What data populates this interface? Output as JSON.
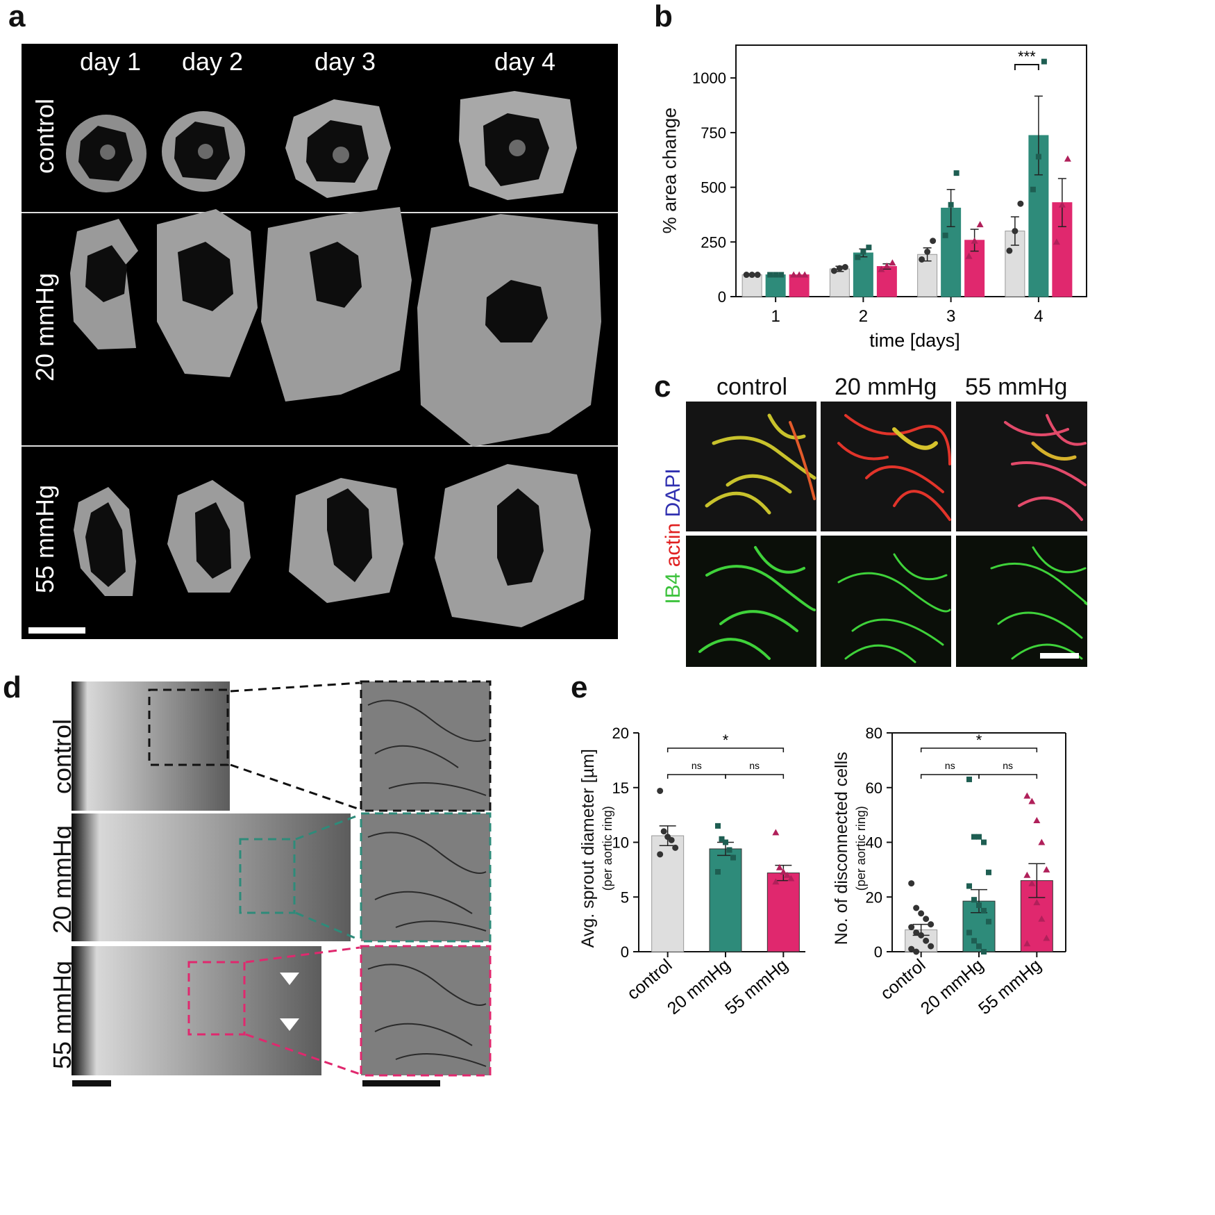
{
  "panels": {
    "a": {
      "letter": "a",
      "columns": [
        "day 1",
        "day 2",
        "day 3",
        "day 4"
      ],
      "rows": [
        "control",
        "20 mmHg",
        "55 mmHg"
      ]
    },
    "b": {
      "letter": "b"
    },
    "c": {
      "letter": "c",
      "columns": [
        "control",
        "20 mmHg",
        "55 mmHg"
      ],
      "stain": {
        "IB4": "IB4",
        "actin": "actin",
        "DAPI": "DAPI"
      }
    },
    "d": {
      "letter": "d",
      "rows": [
        "control",
        "20 mmHg",
        "55 mmHg"
      ]
    },
    "e": {
      "letter": "e"
    }
  },
  "colors": {
    "control": "#dedede",
    "p20": "#2e8b7a",
    "p55": "#e0286e",
    "mark_p55": "#b0205a"
  },
  "chart_data": [
    {
      "id": "b",
      "type": "bar",
      "categories": [
        "1",
        "2",
        "3",
        "4"
      ],
      "xlabel": "time [days]",
      "ylabel": "% area change",
      "ylim": [
        0,
        1150
      ],
      "yticks": [
        "0",
        "250",
        "500",
        "750",
        "1000"
      ],
      "series": [
        {
          "key": "control",
          "values": [
            100,
            127,
            193,
            300
          ],
          "errors": [
            0,
            12,
            30,
            65
          ],
          "points": [
            [
              100,
              100,
              100
            ],
            [
              118,
              130,
              135
            ],
            [
              170,
              205,
              255
            ],
            [
              210,
              300,
              425
            ]
          ]
        },
        {
          "key": "p20",
          "values": [
            100,
            200,
            405,
            737
          ],
          "errors": [
            0,
            18,
            85,
            180
          ],
          "points": [
            [
              100,
              100,
              100
            ],
            [
              180,
              205,
              225
            ],
            [
              280,
              420,
              565
            ],
            [
              490,
              640,
              1075
            ]
          ]
        },
        {
          "key": "p55",
          "values": [
            100,
            138,
            258,
            430
          ],
          "errors": [
            0,
            12,
            50,
            110
          ],
          "points": [
            [
              100,
              100,
              100
            ],
            [
              125,
              140,
              155
            ],
            [
              185,
              255,
              330
            ],
            [
              250,
              420,
              630
            ]
          ]
        }
      ],
      "annotations": [
        {
          "text": "***",
          "category": "4"
        }
      ]
    },
    {
      "id": "e1",
      "type": "bar",
      "categories": [
        "control",
        "20 mmHg",
        "55 mmHg"
      ],
      "ylabel": "Avg. sprout diameter [µm]",
      "ylabel_sub": "(per aortic ring)",
      "ylim": [
        0,
        20
      ],
      "yticks": [
        "0",
        "5",
        "10",
        "15",
        "20"
      ],
      "values": [
        10.6,
        9.4,
        7.2
      ],
      "errors": [
        0.9,
        0.6,
        0.7
      ],
      "points": [
        [
          14.7,
          11.0,
          10.5,
          10.2,
          9.5,
          8.9
        ],
        [
          11.5,
          10.3,
          10.0,
          9.3,
          8.6,
          7.3
        ],
        [
          10.9,
          7.7,
          7.3,
          7.0,
          6.7,
          6.4
        ]
      ],
      "significance": [
        {
          "pair": [
            0,
            2
          ],
          "text": "*"
        },
        {
          "pair": [
            0,
            1
          ],
          "text": "ns"
        },
        {
          "pair": [
            1,
            2
          ],
          "text": "ns"
        }
      ]
    },
    {
      "id": "e2",
      "type": "bar",
      "categories": [
        "control",
        "20 mmHg",
        "55 mmHg"
      ],
      "ylabel": "No. of disconnected cells",
      "ylabel_sub": "(per aortic ring)",
      "ylim": [
        0,
        80
      ],
      "yticks": [
        "0",
        "20",
        "40",
        "60",
        "80"
      ],
      "values": [
        8,
        18.5,
        26
      ],
      "errors": [
        2,
        4.2,
        6.2
      ],
      "points": [
        [
          25,
          16,
          14,
          12,
          10,
          9,
          7,
          6,
          4,
          2,
          1,
          0
        ],
        [
          63,
          42,
          42,
          40,
          29,
          24,
          19,
          17,
          15,
          11,
          7,
          4,
          2,
          0
        ],
        [
          57,
          55,
          48,
          40,
          30,
          28,
          25,
          18,
          12,
          5,
          3
        ]
      ],
      "significance": [
        {
          "pair": [
            0,
            2
          ],
          "text": "*"
        },
        {
          "pair": [
            0,
            1
          ],
          "text": "ns"
        },
        {
          "pair": [
            1,
            2
          ],
          "text": "ns"
        }
      ]
    }
  ]
}
